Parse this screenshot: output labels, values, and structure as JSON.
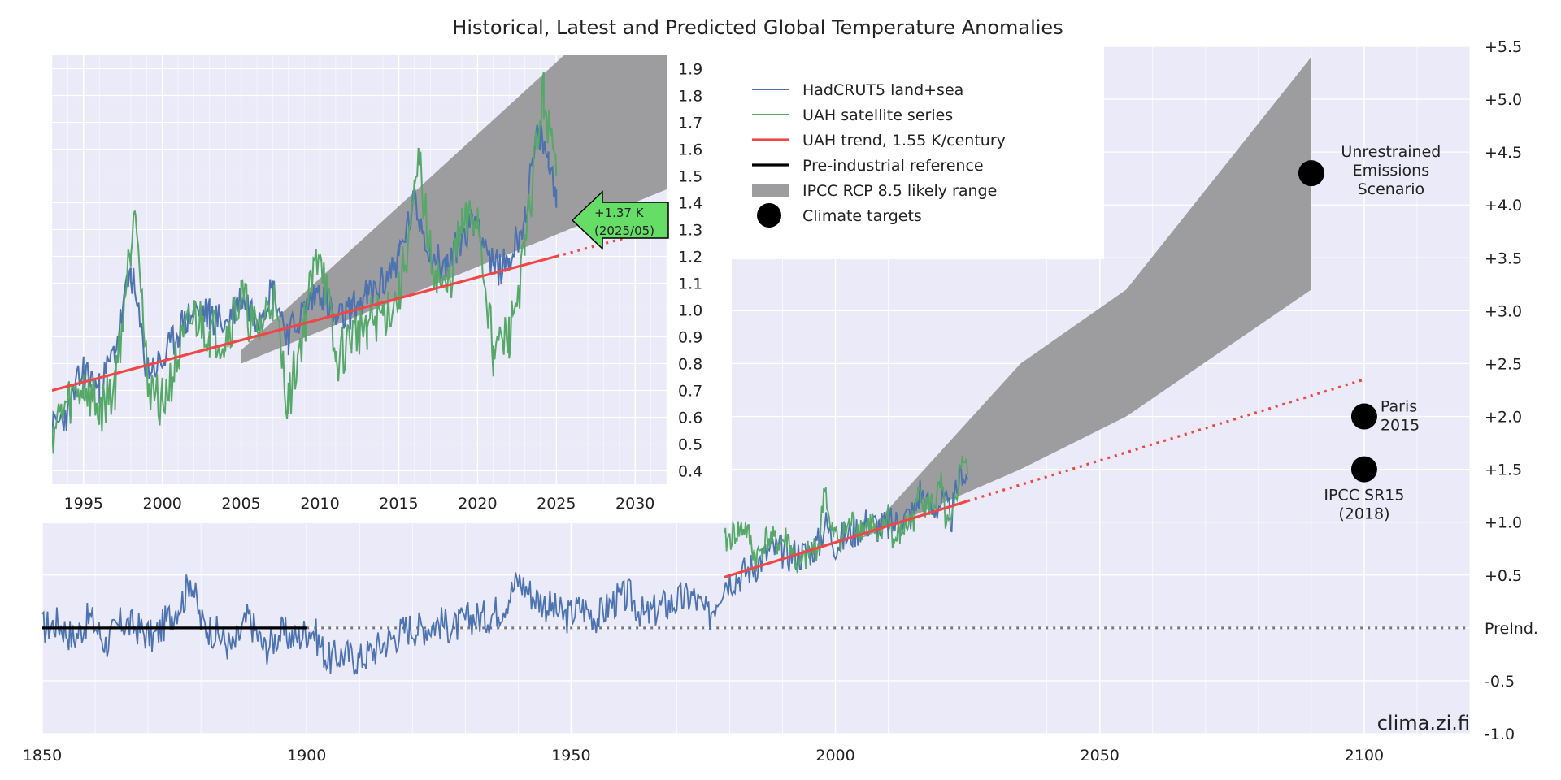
{
  "title": "Historical, Latest and Predicted Global Temperature Anomalies",
  "watermark": "clima.zi.fi",
  "colors": {
    "background": "#eaeaf8",
    "grid": "#ffffff",
    "hadcrut": "#4c72b0",
    "uah": "#55a868",
    "trend": "#f04646",
    "preind": "#000000",
    "ipcc": "#9d9d9f",
    "annotation_fill": "#66dd66"
  },
  "legend": {
    "items": [
      {
        "label": "HadCRUT5 land+sea",
        "kind": "line",
        "color": "#4c72b0"
      },
      {
        "label": "UAH satellite series",
        "kind": "line",
        "color": "#55a868"
      },
      {
        "label": "UAH trend, 1.55 K/century",
        "kind": "line",
        "color": "#f04646"
      },
      {
        "label": "Pre-industrial reference",
        "kind": "line",
        "color": "#000000"
      },
      {
        "label": "IPCC RCP 8.5 likely range",
        "kind": "patch",
        "color": "#9d9d9f"
      },
      {
        "label": "Climate targets",
        "kind": "dot",
        "color": "#000000"
      }
    ]
  },
  "annotation": {
    "line1": "+1.37 K",
    "line2": "(2025/05)"
  },
  "chart_data": [
    {
      "type": "line",
      "panel": "main",
      "xlim": [
        1850,
        2120
      ],
      "ylim": [
        -1.0,
        5.5
      ],
      "x_ticks": [
        {
          "value": 1850,
          "label": "1850"
        },
        {
          "value": 1900,
          "label": "1900"
        },
        {
          "value": 1950,
          "label": "1950"
        },
        {
          "value": 2000,
          "label": "2000"
        },
        {
          "value": 2050,
          "label": "2050"
        },
        {
          "value": 2100,
          "label": "2100"
        }
      ],
      "y_ticks": [
        {
          "value": 5.5,
          "label": "+5.5"
        },
        {
          "value": 5.0,
          "label": "+5.0"
        },
        {
          "value": 4.5,
          "label": "+4.5"
        },
        {
          "value": 4.0,
          "label": "+4.0"
        },
        {
          "value": 3.5,
          "label": "+3.5"
        },
        {
          "value": 3.0,
          "label": "+3.0"
        },
        {
          "value": 2.5,
          "label": "+2.5"
        },
        {
          "value": 2.0,
          "label": "+2.0"
        },
        {
          "value": 1.5,
          "label": "+1.5"
        },
        {
          "value": 1.0,
          "label": "+1.0"
        },
        {
          "value": 0.5,
          "label": "+0.5"
        },
        {
          "value": 0.0,
          "label": "PreInd."
        },
        {
          "value": -0.5,
          "label": "-0.5"
        },
        {
          "value": -1.0,
          "label": "-1.0"
        }
      ],
      "y_axis_side": "right",
      "grid": true,
      "series": [
        {
          "name": "HadCRUT5 land+sea",
          "x": [
            1850,
            1853,
            1856,
            1859,
            1862,
            1865,
            1868,
            1871,
            1874,
            1877,
            1878,
            1880,
            1883,
            1886,
            1889,
            1892,
            1895,
            1898,
            1901,
            1904,
            1907,
            1910,
            1913,
            1916,
            1919,
            1922,
            1925,
            1928,
            1931,
            1934,
            1937,
            1940,
            1943,
            1946,
            1949,
            1952,
            1955,
            1958,
            1961,
            1964,
            1967,
            1970,
            1973,
            1976,
            1979,
            1982,
            1985,
            1988,
            1991,
            1994,
            1997,
            1998,
            2000,
            2003,
            2006,
            2009,
            2012,
            2015,
            2016,
            2018,
            2020,
            2022,
            2023,
            2024,
            2025
          ],
          "y": [
            0.0,
            0.05,
            -0.1,
            0.1,
            -0.15,
            0.05,
            0.0,
            -0.1,
            0.1,
            0.3,
            0.5,
            0.05,
            -0.05,
            -0.2,
            0.1,
            -0.2,
            -0.05,
            -0.1,
            0.0,
            -0.3,
            -0.25,
            -0.3,
            -0.2,
            -0.1,
            0.0,
            0.0,
            0.05,
            0.0,
            0.1,
            0.1,
            0.2,
            0.45,
            0.3,
            0.2,
            0.1,
            0.2,
            0.1,
            0.25,
            0.3,
            0.1,
            0.2,
            0.25,
            0.3,
            0.1,
            0.45,
            0.5,
            0.6,
            0.75,
            0.7,
            0.7,
            0.8,
            1.0,
            0.8,
            0.9,
            1.0,
            0.95,
            1.0,
            1.1,
            1.3,
            1.1,
            1.2,
            1.05,
            1.3,
            1.5,
            1.4
          ]
        },
        {
          "name": "UAH satellite series",
          "x": [
            1979,
            1981,
            1983,
            1985,
            1987,
            1989,
            1991,
            1993,
            1995,
            1997,
            1998,
            1999,
            2001,
            2003,
            2005,
            2007,
            2008,
            2010,
            2011,
            2013,
            2015,
            2016,
            2017,
            2019,
            2020,
            2021,
            2022,
            2023,
            2024,
            2025
          ],
          "y": [
            0.8,
            0.9,
            0.95,
            0.65,
            0.85,
            0.8,
            0.85,
            0.55,
            0.7,
            0.8,
            1.4,
            0.9,
            0.85,
            1.0,
            0.95,
            1.0,
            0.75,
            1.1,
            0.8,
            0.95,
            1.05,
            1.35,
            1.15,
            1.2,
            1.35,
            0.95,
            0.95,
            1.3,
            1.65,
            1.45
          ]
        },
        {
          "name": "UAH trend, 1.55 K/century",
          "x": [
            1979,
            2025
          ],
          "y": [
            0.48,
            1.2
          ],
          "extension_x": [
            2025,
            2100
          ],
          "extension_y": [
            1.2,
            2.35
          ]
        },
        {
          "name": "Pre-industrial reference",
          "x": [
            1850,
            1900
          ],
          "y": [
            0.0,
            0.0
          ],
          "extension_x": [
            1900,
            2120
          ],
          "extension_y": [
            0.0,
            0.0
          ]
        },
        {
          "name": "IPCC RCP 8.5 likely range",
          "x": [
            2005,
            2035,
            2055,
            2090
          ],
          "upper": [
            0.85,
            2.5,
            3.2,
            5.4
          ],
          "lower": [
            0.85,
            1.5,
            2.0,
            3.2
          ]
        }
      ],
      "targets": [
        {
          "label": "Unrestrained Emissions Scenario",
          "lines": [
            "Unrestrained",
            "Emissions",
            "Scenario"
          ],
          "x": 2090,
          "y": 4.3
        },
        {
          "label": "Paris 2015",
          "lines": [
            "Paris",
            "2015"
          ],
          "x": 2100,
          "y": 2.0
        },
        {
          "label": "IPCC SR15 (2018)",
          "lines": [
            "IPCC SR15",
            "(2018)"
          ],
          "x": 2100,
          "y": 1.5
        }
      ]
    },
    {
      "type": "line",
      "panel": "inset",
      "xlim": [
        1993,
        2032
      ],
      "ylim": [
        0.35,
        1.95
      ],
      "x_ticks": [
        {
          "value": 1995,
          "label": "1995"
        },
        {
          "value": 2000,
          "label": "2000"
        },
        {
          "value": 2005,
          "label": "2005"
        },
        {
          "value": 2010,
          "label": "2010"
        },
        {
          "value": 2015,
          "label": "2015"
        },
        {
          "value": 2020,
          "label": "2020"
        },
        {
          "value": 2025,
          "label": "2025"
        },
        {
          "value": 2030,
          "label": "2030"
        }
      ],
      "y_ticks": [
        {
          "value": 1.9,
          "label": "1.9"
        },
        {
          "value": 1.8,
          "label": "1.8"
        },
        {
          "value": 1.7,
          "label": "1.7"
        },
        {
          "value": 1.6,
          "label": "1.6"
        },
        {
          "value": 1.5,
          "label": "1.5"
        },
        {
          "value": 1.4,
          "label": "1.4"
        },
        {
          "value": 1.3,
          "label": "1.3"
        },
        {
          "value": 1.2,
          "label": "1.2"
        },
        {
          "value": 1.1,
          "label": "1.1"
        },
        {
          "value": 1.0,
          "label": "1.0"
        },
        {
          "value": 0.9,
          "label": "0.9"
        },
        {
          "value": 0.8,
          "label": "0.8"
        },
        {
          "value": 0.7,
          "label": "0.7"
        },
        {
          "value": 0.6,
          "label": "0.6"
        },
        {
          "value": 0.5,
          "label": "0.5"
        },
        {
          "value": 0.4,
          "label": "0.4"
        }
      ],
      "y_axis_side": "right",
      "grid": true,
      "series": [
        {
          "name": "HadCRUT5 land+sea",
          "x": [
            1993,
            1994,
            1995,
            1996,
            1997,
            1998,
            1999,
            2000,
            2001,
            2002,
            2003,
            2004,
            2005,
            2006,
            2007,
            2008,
            2009,
            2010,
            2011,
            2012,
            2013,
            2014,
            2015,
            2016,
            2017,
            2018,
            2019,
            2020,
            2021,
            2022,
            2023,
            2023.7,
            2024,
            2024.5,
            2025
          ],
          "y": [
            0.55,
            0.62,
            0.78,
            0.7,
            0.85,
            1.15,
            0.78,
            0.8,
            0.92,
            1.0,
            0.98,
            0.95,
            1.05,
            0.98,
            1.08,
            0.9,
            1.0,
            1.08,
            0.95,
            1.0,
            1.05,
            1.1,
            1.2,
            1.4,
            1.22,
            1.15,
            1.28,
            1.35,
            1.15,
            1.18,
            1.35,
            1.62,
            1.65,
            1.55,
            1.45
          ]
        },
        {
          "name": "UAH satellite series",
          "x": [
            1993,
            1994,
            1995,
            1996,
            1997,
            1998,
            1998.3,
            1999,
            2000,
            2001,
            2002,
            2003,
            2004,
            2005,
            2006,
            2007,
            2008,
            2009,
            2010,
            2011,
            2012,
            2013,
            2014,
            2015,
            2016,
            2016.3,
            2017,
            2018,
            2019,
            2020,
            2021,
            2022,
            2023,
            2023.7,
            2024.2,
            2024.7,
            2025
          ],
          "y": [
            0.55,
            0.65,
            0.72,
            0.62,
            0.72,
            1.25,
            1.45,
            0.75,
            0.65,
            0.82,
            0.98,
            0.92,
            0.9,
            1.05,
            0.9,
            1.05,
            0.65,
            0.95,
            1.25,
            0.8,
            0.9,
            0.95,
            0.98,
            1.05,
            1.4,
            1.55,
            1.2,
            1.05,
            1.3,
            1.35,
            0.85,
            0.9,
            1.2,
            1.6,
            1.8,
            1.6,
            1.5
          ]
        },
        {
          "name": "UAH trend, 1.55 K/century",
          "x": [
            1993,
            2025
          ],
          "y": [
            0.7,
            1.2
          ],
          "extension_x": [
            2025,
            2032
          ],
          "extension_y": [
            1.2,
            1.31
          ]
        },
        {
          "name": "IPCC RCP 8.5 likely range",
          "x": [
            2005,
            2032
          ],
          "upper": [
            0.85,
            2.3
          ],
          "lower": [
            0.8,
            1.45
          ]
        }
      ]
    }
  ]
}
